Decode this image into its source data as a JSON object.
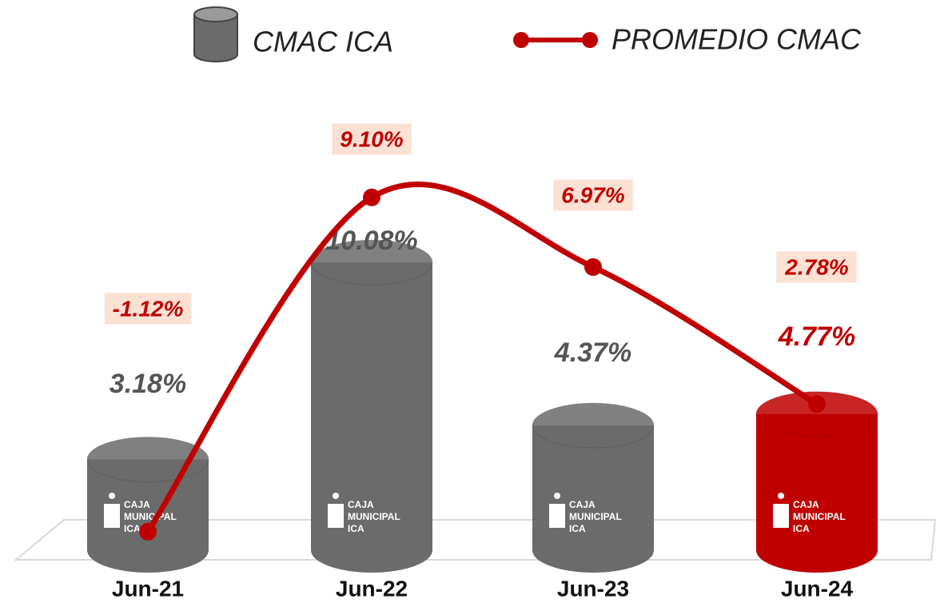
{
  "chart_data": {
    "type": "bar",
    "categories": [
      "Jun-21",
      "Jun-22",
      "Jun-23",
      "Jun-24"
    ],
    "series": [
      {
        "name": "CMAC ICA",
        "type": "bar",
        "color": "#6b6b6b",
        "colors": [
          "#6b6b6b",
          "#6b6b6b",
          "#6b6b6b",
          "#c00000"
        ],
        "values": [
          3.18,
          10.08,
          4.37,
          4.77
        ],
        "value_labels": [
          "3.18%",
          "10.08%",
          "4.37%",
          "4.77%"
        ]
      },
      {
        "name": "PROMEDIO CMAC",
        "type": "line",
        "color": "#c00000",
        "values": [
          -1.12,
          9.1,
          6.97,
          2.78
        ],
        "value_labels": [
          "-1.12%",
          "9.10%",
          "6.97%",
          "2.78%"
        ]
      }
    ]
  },
  "logo": {
    "lines": [
      "CAJA",
      "MUNICIPAL",
      "ICA"
    ]
  }
}
